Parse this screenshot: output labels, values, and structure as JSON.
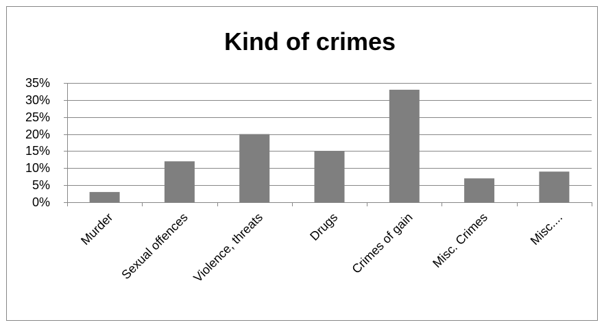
{
  "chart_data": {
    "type": "bar",
    "title": "Kind of crimes",
    "xlabel": "",
    "ylabel": "",
    "categories": [
      "Murder",
      "Sexual offences",
      "Violence, threats",
      "Drugs",
      "Crimes of gain",
      "Misc. Crimes",
      "Misc...."
    ],
    "values": [
      3,
      12,
      20,
      15,
      33,
      7,
      9
    ],
    "ylim": [
      0,
      35
    ],
    "yticks": [
      0,
      5,
      10,
      15,
      20,
      25,
      30,
      35
    ],
    "ytick_labels": [
      "0%",
      "5%",
      "10%",
      "15%",
      "20%",
      "25%",
      "30%",
      "35%"
    ],
    "grid": true,
    "legend": "none",
    "bar_color": "#7f7f7f",
    "grid_color": "#878787",
    "frame_color": "#878787"
  }
}
